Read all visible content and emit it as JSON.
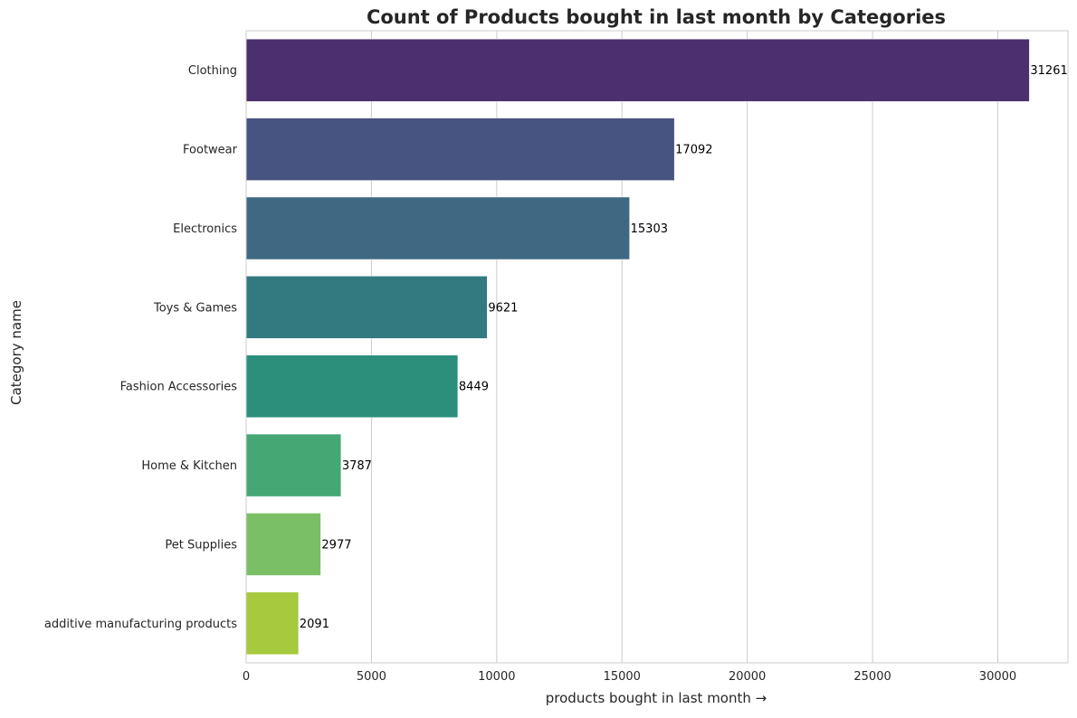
{
  "chart_data": {
    "type": "bar",
    "orientation": "horizontal",
    "title": "Count of Products bought in last month by Categories",
    "xlabel": "products bought in last month →",
    "ylabel": "Category name",
    "categories": [
      "Clothing",
      "Footwear",
      "Electronics",
      "Toys & Games",
      "Fashion Accessories",
      "Home & Kitchen",
      "Pet Supplies",
      "additive manufacturing products"
    ],
    "values": [
      31261,
      17092,
      15303,
      9621,
      8449,
      3787,
      2977,
      2091
    ],
    "data_labels": [
      "31261",
      "17092",
      "15303",
      "9621",
      "8449",
      "3787",
      "2977",
      "2091"
    ],
    "colors": [
      "#4c2f6e",
      "#475380",
      "#3f6982",
      "#327a80",
      "#2b8f7c",
      "#45a874",
      "#7abf65",
      "#a7c93d"
    ],
    "xlim": [
      0,
      32800
    ],
    "xticks": [
      0,
      5000,
      10000,
      15000,
      20000,
      25000,
      30000
    ],
    "xtick_labels": [
      "0",
      "5000",
      "10000",
      "15000",
      "20000",
      "25000",
      "30000"
    ],
    "grid": "vertical",
    "legend": "none",
    "frame_color": "#cccccc"
  }
}
